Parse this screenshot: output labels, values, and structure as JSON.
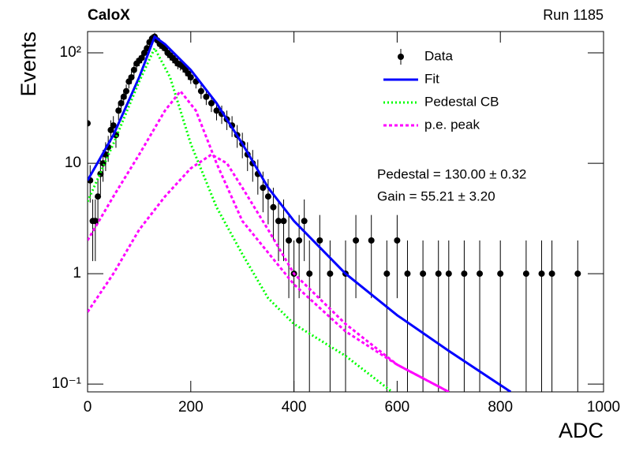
{
  "chart_data": {
    "type": "line",
    "title": "CaloX",
    "subtitle": "Run 1185",
    "x_label": "ADC",
    "y_label": "Events",
    "xlim": [
      0,
      1000
    ],
    "xticks": [
      0,
      200,
      400,
      600,
      800,
      1000
    ],
    "ylim": [
      0.085,
      156
    ],
    "log_y": true,
    "yticks": [
      {
        "value": 0.1,
        "label": "10⁻¹"
      },
      1,
      10,
      {
        "value": 100,
        "label": "10²"
      }
    ],
    "legend": "top-right",
    "annotations": [
      "Pedestal = 130.00 ± 0.32",
      "Gain = 55.21 ± 3.20"
    ],
    "series": [
      {
        "name": "Data",
        "type": "errorbar",
        "color": "#000000",
        "x": [
          0,
          5,
          10,
          15,
          20,
          25,
          30,
          35,
          40,
          45,
          50,
          55,
          60,
          65,
          70,
          75,
          80,
          85,
          90,
          95,
          100,
          105,
          110,
          115,
          120,
          125,
          130,
          135,
          140,
          145,
          150,
          155,
          160,
          165,
          170,
          175,
          180,
          185,
          190,
          195,
          200,
          210,
          220,
          230,
          240,
          250,
          260,
          270,
          280,
          290,
          300,
          310,
          320,
          330,
          340,
          350,
          360,
          370,
          380,
          390,
          400,
          410,
          420,
          430,
          450,
          470,
          500,
          520,
          550,
          580,
          600,
          620,
          650,
          680,
          700,
          730,
          760,
          800,
          850,
          880,
          900,
          950
        ],
        "values": [
          23,
          7,
          3,
          3,
          5,
          8,
          10,
          12,
          14,
          20,
          22,
          18,
          30,
          35,
          40,
          45,
          55,
          60,
          70,
          80,
          85,
          90,
          100,
          110,
          125,
          135,
          140,
          130,
          120,
          115,
          110,
          100,
          95,
          90,
          85,
          80,
          78,
          75,
          70,
          65,
          60,
          55,
          45,
          40,
          35,
          30,
          28,
          25,
          22,
          18,
          15,
          12,
          10,
          8,
          6,
          5,
          4,
          3,
          3,
          2,
          1,
          2,
          3,
          1,
          2,
          1,
          1,
          2,
          2,
          1,
          2,
          1,
          1,
          1,
          1,
          1,
          1,
          1,
          1,
          1,
          1,
          1
        ],
        "errors": [
          4.8,
          2.6,
          1.7,
          1.7,
          2.2,
          2.8,
          3.2,
          3.5,
          3.7,
          4.5,
          4.7,
          4.2,
          5.5,
          5.9,
          6.3,
          6.7,
          7.4,
          7.7,
          8.4,
          8.9,
          9.2,
          9.5,
          10,
          10.5,
          11.2,
          11.6,
          11.8,
          11.4,
          11,
          10.7,
          10.5,
          10,
          9.7,
          9.5,
          9.2,
          8.9,
          8.8,
          8.7,
          8.4,
          8.1,
          7.7,
          7.4,
          6.7,
          6.3,
          5.9,
          5.5,
          5.3,
          5,
          4.7,
          4.2,
          3.9,
          3.5,
          3.2,
          2.8,
          2.4,
          2.2,
          2,
          1.7,
          1.7,
          1.4,
          1,
          1.4,
          1.7,
          1,
          1.4,
          1,
          1,
          1.4,
          1.4,
          1,
          1.4,
          1,
          1,
          1,
          1,
          1,
          1,
          1,
          1,
          1,
          1,
          1
        ]
      },
      {
        "name": "Fit",
        "type": "line",
        "color": "#0000ff",
        "dash": "none",
        "x": [
          0,
          50,
          100,
          130,
          150,
          200,
          250,
          300,
          350,
          400,
          500,
          600,
          700,
          820
        ],
        "values": [
          7,
          18,
          60,
          140,
          120,
          70,
          35,
          15,
          6,
          3,
          1,
          0.42,
          0.2,
          0.085
        ]
      },
      {
        "name": "Pedestal CB",
        "type": "line",
        "color": "#00ff00",
        "dash": "2 3",
        "x": [
          0,
          50,
          100,
          130,
          160,
          200,
          250,
          300,
          350,
          400,
          500,
          590
        ],
        "values": [
          4.5,
          15,
          55,
          110,
          60,
          15,
          4,
          1.5,
          0.6,
          0.35,
          0.18,
          0.085
        ]
      },
      {
        "name": "p.e. peak",
        "type": "line",
        "color": "#ff00ff",
        "dash": "4 3",
        "x": [
          0,
          50,
          100,
          150,
          180,
          210,
          250,
          300,
          400,
          500,
          600,
          700
        ],
        "values": [
          2,
          5,
          12,
          30,
          45,
          30,
          10,
          3,
          0.8,
          0.3,
          0.15,
          0.085
        ]
      },
      {
        "type": "line",
        "color": "#ff00ff",
        "dash": "4 3",
        "x": [
          0,
          50,
          100,
          150,
          200,
          240,
          270,
          300,
          350,
          400,
          500,
          600,
          700
        ],
        "values": [
          0.45,
          1,
          2.5,
          5,
          9,
          12,
          10,
          6,
          2.5,
          1,
          0.35,
          0.15,
          0.085
        ]
      }
    ]
  }
}
